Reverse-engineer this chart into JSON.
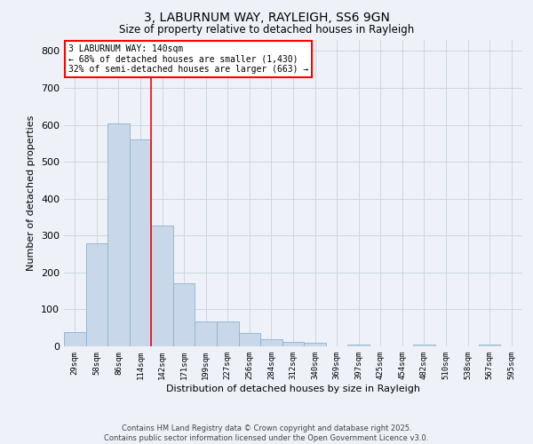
{
  "title_line1": "3, LABURNUM WAY, RAYLEIGH, SS6 9GN",
  "title_line2": "Size of property relative to detached houses in Rayleigh",
  "xlabel": "Distribution of detached houses by size in Rayleigh",
  "ylabel": "Number of detached properties",
  "bin_labels": [
    "29sqm",
    "58sqm",
    "86sqm",
    "114sqm",
    "142sqm",
    "171sqm",
    "199sqm",
    "227sqm",
    "256sqm",
    "284sqm",
    "312sqm",
    "340sqm",
    "369sqm",
    "397sqm",
    "425sqm",
    "454sqm",
    "482sqm",
    "510sqm",
    "538sqm",
    "567sqm",
    "595sqm"
  ],
  "bin_values": [
    38,
    280,
    603,
    560,
    328,
    170,
    68,
    68,
    37,
    20,
    12,
    10,
    0,
    5,
    0,
    0,
    5,
    0,
    0,
    5,
    0
  ],
  "bar_color": "#c8d8ea",
  "bar_edge_color": "#8ab4cc",
  "vline_index": 4,
  "vline_color": "red",
  "annotation_text": "3 LABURNUM WAY: 140sqm\n← 68% of detached houses are smaller (1,430)\n32% of semi-detached houses are larger (663) →",
  "annotation_box_color": "white",
  "annotation_box_edge_color": "red",
  "ylim": [
    0,
    830
  ],
  "yticks": [
    0,
    100,
    200,
    300,
    400,
    500,
    600,
    700,
    800
  ],
  "grid_color": "#ccd6e0",
  "background_color": "#eef2f8",
  "footer_text": "Contains HM Land Registry data © Crown copyright and database right 2025.\nContains public sector information licensed under the Open Government Licence v3.0."
}
